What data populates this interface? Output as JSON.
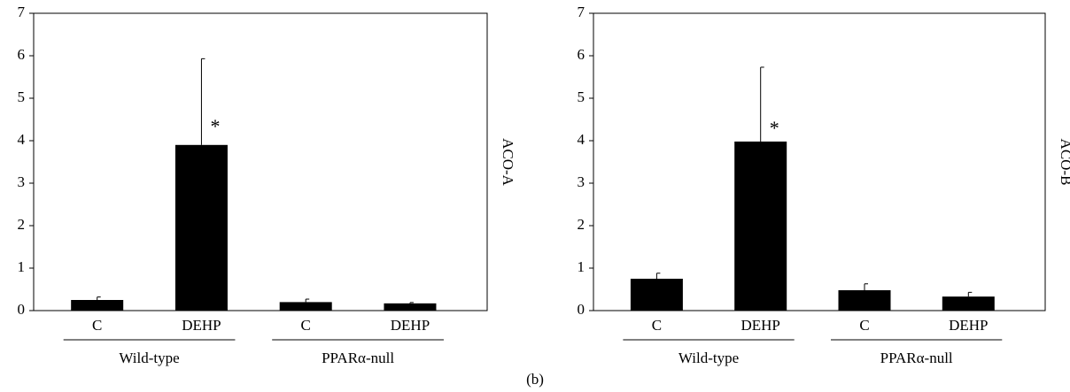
{
  "panel_label": "(b)",
  "chart_data": [
    {
      "type": "bar",
      "ylabel": "ACO-A",
      "categories": [
        "C",
        "DEHP",
        "C",
        "DEHP"
      ],
      "groups": [
        "Wild-type",
        "PPARα-null"
      ],
      "values": [
        0.25,
        3.9,
        0.2,
        0.17
      ],
      "errors": [
        0.07,
        2.03,
        0.07,
        0.02
      ],
      "star_labels": [
        null,
        "*",
        null,
        null
      ],
      "color": "#000000",
      "ylim": [
        0,
        7
      ],
      "yticks": [
        0,
        1,
        2,
        3,
        4,
        5,
        6,
        7
      ]
    },
    {
      "type": "bar",
      "ylabel": "ACO-B",
      "categories": [
        "C",
        "DEHP",
        "C",
        "DEHP"
      ],
      "groups": [
        "Wild-type",
        "PPARα-null"
      ],
      "values": [
        0.75,
        3.98,
        0.48,
        0.33
      ],
      "errors": [
        0.13,
        1.75,
        0.15,
        0.1
      ],
      "star_labels": [
        null,
        "*",
        null,
        null
      ],
      "color": "#000000",
      "ylim": [
        0,
        7
      ],
      "yticks": [
        0,
        1,
        2,
        3,
        4,
        5,
        6,
        7
      ]
    }
  ]
}
